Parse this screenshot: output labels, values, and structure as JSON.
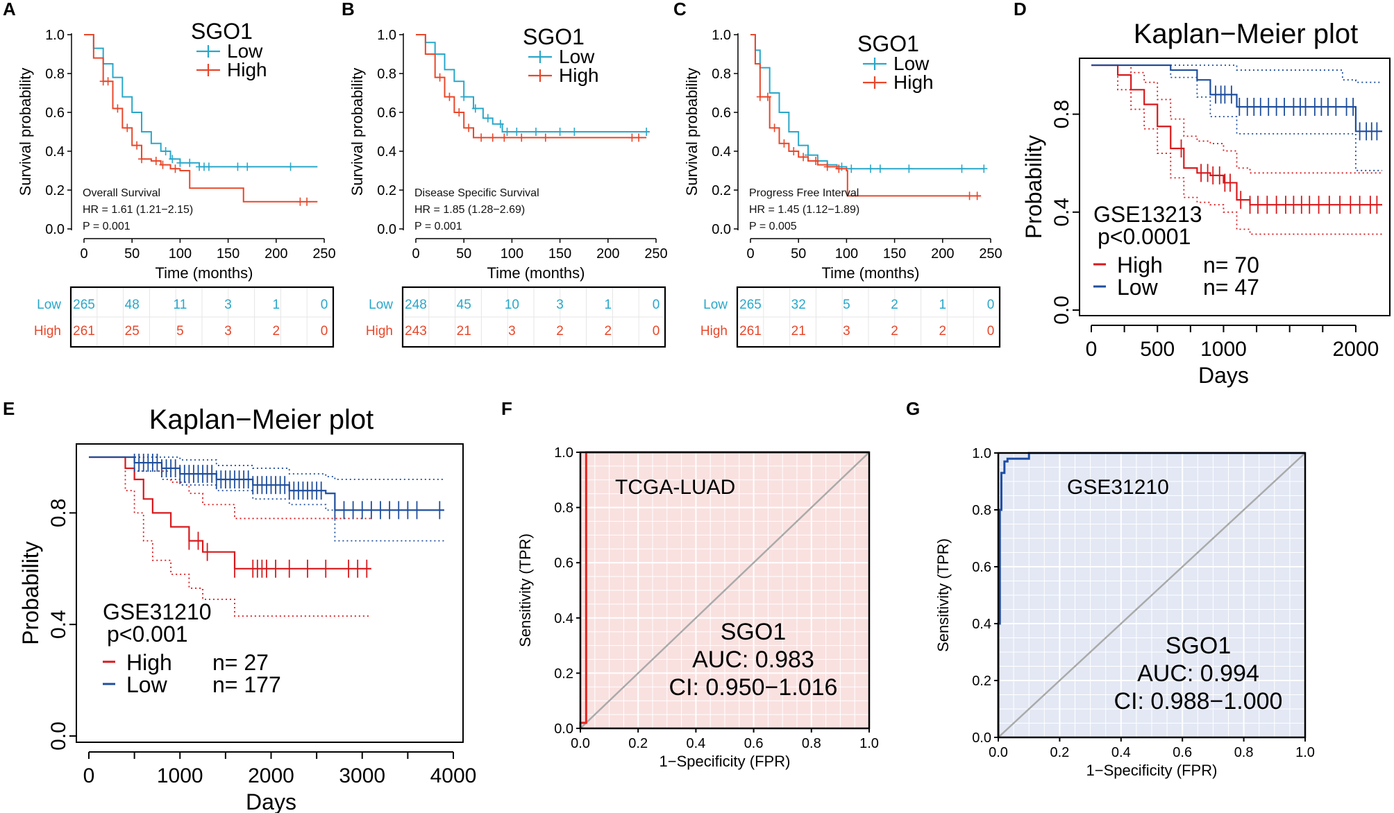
{
  "colors": {
    "low_cyan": "#29a7c9",
    "high_red": "#e8472a",
    "km_red": "#d7191c",
    "km_blue": "#1f4e9c",
    "roc_red_line": "#e2241e",
    "roc_red_bg": "#f9e1e0",
    "roc_blue_line": "#1f4ea3",
    "roc_blue_bg": "#e3e8f4",
    "diag": "#aaaaaa"
  },
  "chart_data": [
    {
      "panel": "A",
      "type": "line",
      "ylabel": "Survival probability",
      "xlabel": "Time (months)",
      "xlim": [
        0,
        250
      ],
      "ylim": [
        0,
        1
      ],
      "xticks": [
        "0",
        "50",
        "100",
        "150",
        "200",
        "250"
      ],
      "yticks": [
        "0.0",
        "0.2",
        "0.4",
        "0.6",
        "0.8",
        "1.0"
      ],
      "legend": {
        "title": "SGO1",
        "items": [
          "Low",
          "High"
        ]
      },
      "annotations": [
        "Overall Survival",
        "HR = 1.61 (1.21−2.15)",
        "P = 0.001"
      ],
      "series": [
        {
          "name": "Low",
          "color_key": "low_cyan",
          "x": [
            0,
            10,
            20,
            30,
            40,
            50,
            60,
            70,
            80,
            90,
            100,
            120,
            150,
            200,
            243
          ],
          "y": [
            1.0,
            0.93,
            0.85,
            0.78,
            0.68,
            0.6,
            0.5,
            0.44,
            0.4,
            0.36,
            0.34,
            0.32,
            0.32,
            0.32,
            0.32
          ],
          "censor_x": [
            85,
            92,
            100,
            110,
            120,
            125,
            130,
            160,
            170,
            215
          ]
        },
        {
          "name": "High",
          "color_key": "high_red",
          "x": [
            0,
            10,
            20,
            30,
            40,
            50,
            60,
            70,
            80,
            90,
            100,
            110,
            165,
            166,
            243
          ],
          "y": [
            1.0,
            0.88,
            0.76,
            0.62,
            0.52,
            0.43,
            0.36,
            0.35,
            0.33,
            0.31,
            0.3,
            0.21,
            0.21,
            0.14,
            0.14
          ],
          "censor_x": [
            20,
            25,
            35,
            45,
            55,
            60,
            75,
            82,
            95,
            225,
            232
          ]
        }
      ],
      "risk_table": {
        "rows": [
          {
            "label": "Low",
            "values": [
              "265",
              "48",
              "11",
              "3",
              "1",
              "0"
            ]
          },
          {
            "label": "High",
            "values": [
              "261",
              "25",
              "5",
              "3",
              "2",
              "0"
            ]
          }
        ]
      }
    },
    {
      "panel": "B",
      "type": "line",
      "ylabel": "Survival probability",
      "xlabel": "Time (months)",
      "xlim": [
        0,
        250
      ],
      "ylim": [
        0,
        1
      ],
      "xticks": [
        "0",
        "50",
        "100",
        "150",
        "200",
        "250"
      ],
      "yticks": [
        "0.0",
        "0.2",
        "0.4",
        "0.6",
        "0.8",
        "1.0"
      ],
      "legend": {
        "title": "SGO1",
        "items": [
          "Low",
          "High"
        ]
      },
      "annotations": [
        "Disease Specific Survival",
        "HR = 1.85 (1.28−2.69)",
        "P = 0.001"
      ],
      "series": [
        {
          "name": "Low",
          "color_key": "low_cyan",
          "x": [
            0,
            10,
            20,
            30,
            40,
            50,
            60,
            70,
            80,
            90,
            100,
            243
          ],
          "y": [
            1.0,
            0.96,
            0.9,
            0.82,
            0.76,
            0.68,
            0.62,
            0.57,
            0.54,
            0.5,
            0.5,
            0.5
          ],
          "censor_x": [
            50,
            62,
            75,
            88,
            95,
            105,
            125,
            150,
            165,
            240
          ]
        },
        {
          "name": "High",
          "color_key": "high_red",
          "x": [
            0,
            10,
            20,
            30,
            40,
            50,
            60,
            70,
            80,
            240
          ],
          "y": [
            1.0,
            0.9,
            0.78,
            0.68,
            0.6,
            0.52,
            0.47,
            0.47,
            0.47,
            0.47
          ],
          "censor_x": [
            25,
            35,
            45,
            55,
            68,
            80,
            92,
            110,
            135,
            225,
            232
          ]
        }
      ],
      "risk_table": {
        "rows": [
          {
            "label": "Low",
            "values": [
              "248",
              "45",
              "10",
              "3",
              "1",
              "0"
            ]
          },
          {
            "label": "High",
            "values": [
              "243",
              "21",
              "3",
              "2",
              "2",
              "0"
            ]
          }
        ]
      }
    },
    {
      "panel": "C",
      "type": "line",
      "ylabel": "Survival probability",
      "xlabel": "Time (months)",
      "xlim": [
        0,
        250
      ],
      "ylim": [
        0,
        1
      ],
      "xticks": [
        "0",
        "50",
        "100",
        "150",
        "200",
        "250"
      ],
      "yticks": [
        "0.0",
        "0.2",
        "0.4",
        "0.6",
        "0.8",
        "1.0"
      ],
      "legend": {
        "title": "SGO1",
        "items": [
          "Low",
          "High"
        ]
      },
      "annotations": [
        "Progress Free Interval",
        "HR = 1.45 (1.12−1.89)",
        "P = 0.005"
      ],
      "series": [
        {
          "name": "Low",
          "color_key": "low_cyan",
          "x": [
            0,
            5,
            10,
            20,
            30,
            40,
            50,
            60,
            70,
            80,
            90,
            100,
            243
          ],
          "y": [
            1.0,
            0.92,
            0.83,
            0.7,
            0.6,
            0.5,
            0.43,
            0.38,
            0.35,
            0.33,
            0.32,
            0.31,
            0.31
          ],
          "censor_x": [
            60,
            70,
            80,
            95,
            105,
            125,
            135,
            165,
            220,
            243
          ]
        },
        {
          "name": "High",
          "color_key": "high_red",
          "x": [
            0,
            5,
            10,
            20,
            30,
            40,
            50,
            60,
            70,
            80,
            90,
            100,
            101,
            240
          ],
          "y": [
            1.0,
            0.85,
            0.68,
            0.52,
            0.44,
            0.4,
            0.37,
            0.35,
            0.33,
            0.32,
            0.31,
            0.3,
            0.17,
            0.17
          ],
          "censor_x": [
            10,
            18,
            25,
            35,
            45,
            55,
            68,
            80,
            92,
            228,
            236
          ]
        }
      ],
      "risk_table": {
        "rows": [
          {
            "label": "Low",
            "values": [
              "265",
              "32",
              "5",
              "2",
              "1",
              "0"
            ]
          },
          {
            "label": "High",
            "values": [
              "261",
              "21",
              "3",
              "2",
              "2",
              "0"
            ]
          }
        ]
      }
    },
    {
      "panel": "D",
      "type": "line",
      "title": "Kaplan−Meier plot",
      "ylabel": "Probability",
      "xlabel": "Days",
      "xlim": [
        0,
        2200
      ],
      "ylim": [
        0,
        1
      ],
      "xticks": [
        "0",
        "500",
        "1000",
        "2000"
      ],
      "xtick_values": [
        0,
        500,
        1000,
        2000
      ],
      "yticks": [
        "0.0",
        "0.4",
        "0.8"
      ],
      "ytick_values": [
        0.0,
        0.4,
        0.8
      ],
      "dataset": "GSE13213",
      "pvalue": "p<0.0001",
      "legend": {
        "items": [
          {
            "name": "High",
            "n": "n= 70"
          },
          {
            "name": "Low",
            "n": "n= 47"
          }
        ]
      },
      "series": [
        {
          "name": "High",
          "color_key": "km_red",
          "x": [
            0,
            100,
            200,
            300,
            400,
            500,
            600,
            700,
            800,
            900,
            1000,
            1100,
            1200,
            2200
          ],
          "y": [
            1.0,
            1.0,
            0.96,
            0.9,
            0.84,
            0.75,
            0.66,
            0.58,
            0.56,
            0.55,
            0.52,
            0.45,
            0.43,
            0.43
          ],
          "ci_upper": [
            1.0,
            1.0,
            1.0,
            0.97,
            0.93,
            0.86,
            0.78,
            0.71,
            0.69,
            0.68,
            0.65,
            0.58,
            0.56,
            0.56
          ],
          "ci_lower": [
            1.0,
            1.0,
            0.9,
            0.82,
            0.74,
            0.64,
            0.54,
            0.46,
            0.44,
            0.43,
            0.4,
            0.33,
            0.31,
            0.31
          ],
          "censor_x": [
            680,
            830,
            880,
            920,
            970,
            1010,
            1050,
            1130,
            1200,
            1260,
            1330,
            1400,
            1470,
            1530,
            1590,
            1650,
            1720,
            1800,
            1880,
            1960,
            2030,
            2110,
            2160
          ]
        },
        {
          "name": "Low",
          "color_key": "km_blue",
          "x": [
            0,
            400,
            600,
            800,
            900,
            1100,
            1900,
            2000,
            2200
          ],
          "y": [
            1.0,
            1.0,
            0.98,
            0.94,
            0.88,
            0.83,
            0.83,
            0.73,
            0.73
          ],
          "ci_upper": [
            1.0,
            1.0,
            1.0,
            1.0,
            1.0,
            0.98,
            0.94,
            0.93,
            0.93
          ],
          "ci_lower": [
            1.0,
            1.0,
            0.95,
            0.87,
            0.79,
            0.72,
            0.72,
            0.57,
            0.57
          ],
          "censor_x": [
            940,
            980,
            1010,
            1060,
            1120,
            1180,
            1230,
            1280,
            1340,
            1400,
            1460,
            1530,
            1580,
            1620,
            1690,
            1740,
            1790,
            1850,
            1930,
            1980,
            2030,
            2080,
            2120,
            2160
          ]
        }
      ]
    },
    {
      "panel": "E",
      "type": "line",
      "title": "Kaplan−Meier plot",
      "ylabel": "Probability",
      "xlabel": "Days",
      "xlim": [
        0,
        4000
      ],
      "ylim": [
        0,
        1
      ],
      "xticks": [
        "0",
        "1000",
        "2000",
        "3000",
        "4000"
      ],
      "xtick_values": [
        0,
        1000,
        2000,
        3000,
        4000
      ],
      "yticks": [
        "0.0",
        "0.4",
        "0.8"
      ],
      "ytick_values": [
        0.0,
        0.4,
        0.8
      ],
      "dataset": "GSE31210",
      "pvalue": "p<0.001",
      "legend": {
        "items": [
          {
            "name": "High",
            "n": "n= 27"
          },
          {
            "name": "Low",
            "n": "n= 177"
          }
        ]
      },
      "series": [
        {
          "name": "High",
          "color_key": "km_red",
          "x": [
            0,
            300,
            400,
            500,
            600,
            700,
            900,
            1100,
            1250,
            1600,
            3100
          ],
          "y": [
            1.0,
            1.0,
            0.96,
            0.92,
            0.85,
            0.8,
            0.75,
            0.7,
            0.66,
            0.6,
            0.6
          ],
          "ci_upper": [
            1.0,
            1.0,
            1.0,
            1.0,
            0.98,
            0.95,
            0.91,
            0.87,
            0.83,
            0.78,
            0.78
          ],
          "ci_lower": [
            1.0,
            1.0,
            0.88,
            0.8,
            0.7,
            0.63,
            0.58,
            0.53,
            0.49,
            0.43,
            0.43
          ],
          "censor_x": [
            1100,
            1200,
            1300,
            1600,
            1800,
            1850,
            1900,
            1950,
            2050,
            2200,
            2400,
            2600,
            2850,
            2950,
            3050
          ]
        },
        {
          "name": "Low",
          "color_key": "km_blue",
          "x": [
            0,
            300,
            500,
            800,
            1000,
            1400,
            1800,
            2200,
            2600,
            2700,
            3900
          ],
          "y": [
            1.0,
            1.0,
            0.98,
            0.96,
            0.94,
            0.92,
            0.9,
            0.88,
            0.87,
            0.81,
            0.81
          ],
          "ci_upper": [
            1.0,
            1.0,
            1.0,
            1.0,
            0.99,
            0.97,
            0.96,
            0.94,
            0.93,
            0.92,
            0.92
          ],
          "ci_lower": [
            1.0,
            1.0,
            0.95,
            0.92,
            0.9,
            0.88,
            0.85,
            0.83,
            0.81,
            0.7,
            0.7
          ],
          "censor_x": [
            500,
            550,
            600,
            650,
            700,
            750,
            800,
            850,
            900,
            950,
            1000,
            1050,
            1100,
            1150,
            1200,
            1250,
            1300,
            1350,
            1400,
            1450,
            1500,
            1550,
            1600,
            1650,
            1700,
            1750,
            1800,
            1850,
            1900,
            1950,
            2000,
            2050,
            2100,
            2150,
            2200,
            2250,
            2300,
            2350,
            2400,
            2450,
            2500,
            2550,
            2700,
            2800,
            2900,
            3000,
            3100,
            3200,
            3300,
            3400,
            3500,
            3600,
            3850
          ]
        }
      ]
    },
    {
      "panel": "F",
      "type": "line",
      "ylabel": "Sensitivity (TPR)",
      "xlabel": "1−Specificity (FPR)",
      "xlim": [
        0,
        1
      ],
      "ylim": [
        0,
        1
      ],
      "xticks": [
        "0.0",
        "0.2",
        "0.4",
        "0.6",
        "0.8",
        "1.0"
      ],
      "yticks": [
        "0.0",
        "0.2",
        "0.4",
        "0.6",
        "0.8",
        "1.0"
      ],
      "dataset": "TCGA-LUAD",
      "gene": "SGO1",
      "auc": "AUC: 0.983",
      "ci": "CI: 0.950−1.016",
      "series": [
        {
          "name": "ROC",
          "color_key": "roc_red_line",
          "x": [
            0.0,
            0.0,
            0.02,
            0.02,
            1.0
          ],
          "y": [
            0.0,
            0.02,
            0.02,
            1.0,
            1.0
          ]
        }
      ]
    },
    {
      "panel": "G",
      "type": "line",
      "ylabel": "Sensitivity (TPR)",
      "xlabel": "1−Specificity (FPR)",
      "xlim": [
        0,
        1
      ],
      "ylim": [
        0,
        1
      ],
      "xticks": [
        "0.0",
        "0.2",
        "0.4",
        "0.6",
        "0.8",
        "1.0"
      ],
      "yticks": [
        "0.0",
        "0.2",
        "0.4",
        "0.6",
        "0.8",
        "1.0"
      ],
      "dataset": "GSE31210",
      "gene": "SGO1",
      "auc": "AUC: 0.994",
      "ci": "CI: 0.988−1.000",
      "series": [
        {
          "name": "ROC",
          "color_key": "roc_blue_line",
          "x": [
            0.0,
            0.0,
            0.005,
            0.005,
            0.01,
            0.01,
            0.02,
            0.02,
            0.03,
            0.03,
            0.1,
            0.1,
            1.0
          ],
          "y": [
            0.0,
            0.4,
            0.4,
            0.8,
            0.8,
            0.93,
            0.93,
            0.97,
            0.97,
            0.98,
            0.98,
            1.0,
            1.0
          ]
        }
      ]
    }
  ]
}
